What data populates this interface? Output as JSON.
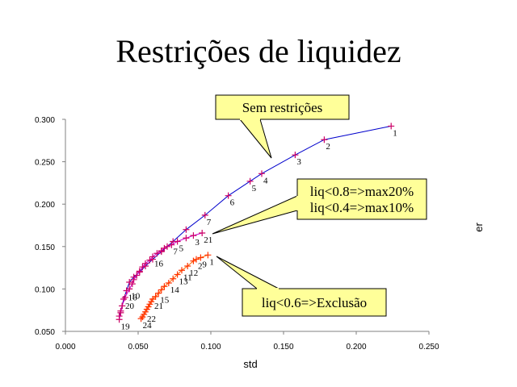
{
  "slide": {
    "title": "Restrições de liquidez"
  },
  "colors": {
    "plot_line": "#808080",
    "callout_fill": "#ffff99",
    "callout_stroke": "#000000"
  },
  "chart_data": {
    "type": "scatter",
    "xlabel": "std",
    "ylabel": "er",
    "xlim": [
      0,
      0.25
    ],
    "ylim": [
      0.05,
      0.3
    ],
    "x_ticks": [
      0.0,
      0.05,
      0.1,
      0.15,
      0.2,
      0.25
    ],
    "x_tick_labels": [
      "0.000",
      "0.050",
      "0.100",
      "0.150",
      "0.200",
      "0.250"
    ],
    "y_ticks": [
      0.05,
      0.1,
      0.15,
      0.2,
      0.25,
      0.3
    ],
    "y_tick_labels": [
      "0.050",
      "0.100",
      "0.150",
      "0.200",
      "0.250",
      "0.300"
    ],
    "grid": false,
    "series": [
      {
        "color": "#0000cc",
        "marker_color": "#cc0066",
        "x": [
          0.224,
          0.178,
          0.158,
          0.135,
          0.127,
          0.112,
          0.096,
          0.083,
          0.074,
          0.066,
          0.06,
          0.055,
          0.051,
          0.047,
          0.044,
          0.042,
          0.04,
          0.039,
          0.038,
          0.037
        ],
        "y": [
          0.292,
          0.276,
          0.258,
          0.236,
          0.227,
          0.21,
          0.187,
          0.17,
          0.156,
          0.144,
          0.135,
          0.127,
          0.12,
          0.114,
          0.108,
          0.098,
          0.088,
          0.08,
          0.074,
          0.068
        ],
        "labels": [
          "1",
          "2",
          "3",
          "4",
          "5",
          "6",
          "7",
          "",
          "",
          "",
          "",
          "",
          "",
          "",
          "",
          "16",
          "20",
          "",
          "",
          ""
        ]
      },
      {
        "color": "#cc00cc",
        "marker_color": "#cc0066",
        "x": [
          0.094,
          0.088,
          0.083,
          0.077,
          0.073,
          0.07,
          0.068,
          0.066,
          0.063,
          0.06,
          0.058,
          0.055,
          0.053,
          0.051,
          0.049,
          0.047,
          0.046,
          0.044,
          0.041,
          0.039,
          0.038,
          0.037
        ],
        "y": [
          0.166,
          0.163,
          0.16,
          0.156,
          0.152,
          0.15,
          0.148,
          0.145,
          0.142,
          0.138,
          0.134,
          0.13,
          0.126,
          0.121,
          0.116,
          0.111,
          0.106,
          0.1,
          0.09,
          0.08,
          0.072,
          0.064
        ],
        "labels": [
          "21",
          "3",
          "",
          "5",
          "7",
          "",
          "",
          "",
          "",
          "16",
          "",
          "",
          "",
          "",
          "",
          "",
          "",
          "10",
          "",
          "",
          "",
          "19"
        ]
      },
      {
        "color": "#ff6600",
        "marker_color": "#ff3300",
        "x": [
          0.098,
          0.093,
          0.09,
          0.088,
          0.084,
          0.08,
          0.077,
          0.074,
          0.071,
          0.068,
          0.066,
          0.064,
          0.062,
          0.06,
          0.059,
          0.058,
          0.057,
          0.056,
          0.055,
          0.054,
          0.053,
          0.052
        ],
        "y": [
          0.14,
          0.137,
          0.135,
          0.133,
          0.127,
          0.122,
          0.117,
          0.112,
          0.107,
          0.103,
          0.099,
          0.095,
          0.091,
          0.088,
          0.085,
          0.082,
          0.079,
          0.076,
          0.073,
          0.07,
          0.067,
          0.065
        ],
        "labels": [
          "1",
          "9",
          "2",
          "",
          "12",
          "11",
          "13",
          "",
          "14",
          "",
          "",
          "15",
          "",
          "21",
          "",
          "",
          "",
          "",
          "22",
          "",
          "",
          "24"
        ]
      }
    ]
  },
  "callouts": [
    {
      "text_lines": [
        "Sem restrições"
      ]
    },
    {
      "text_lines": [
        "liq<0.8=>max20%",
        "liq<0.4=>max10%"
      ]
    },
    {
      "text_lines": [
        "liq<0.6=>Exclusão"
      ]
    }
  ]
}
